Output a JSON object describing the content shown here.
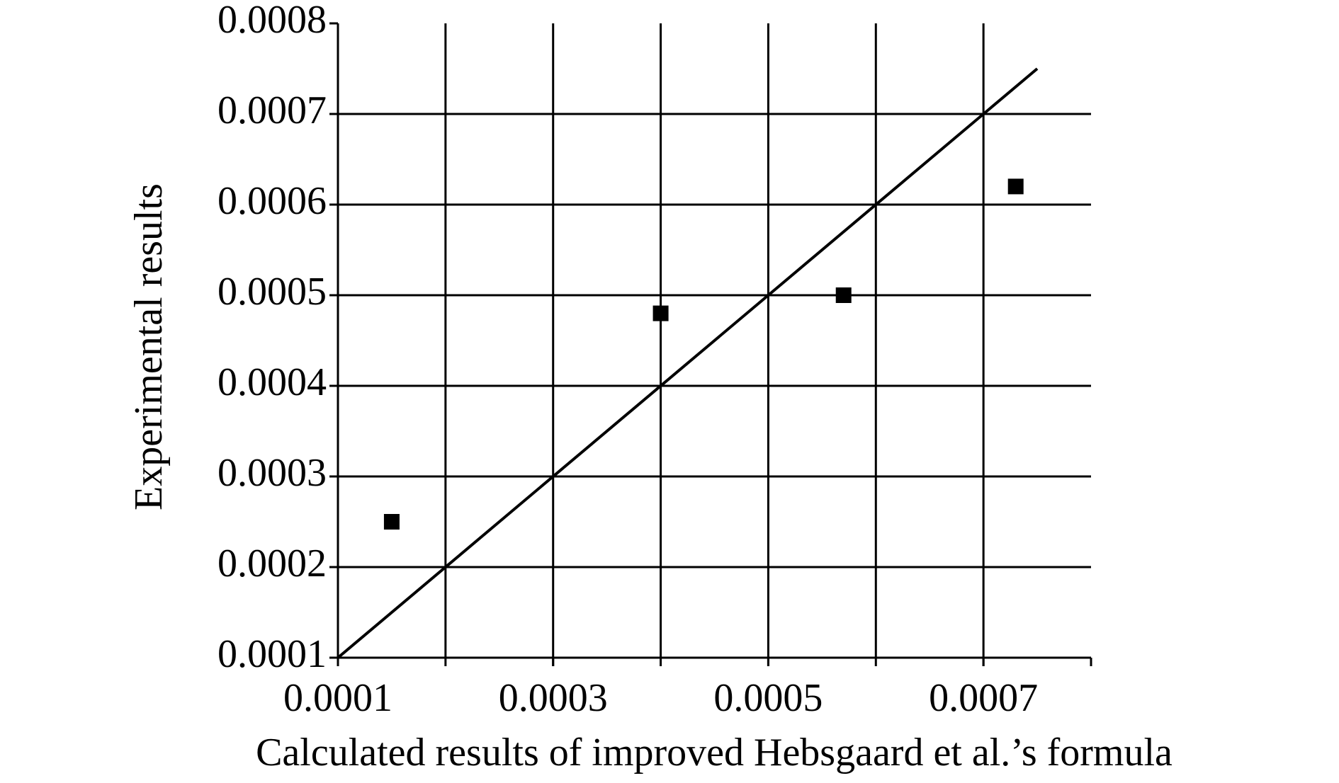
{
  "chart_data": {
    "type": "scatter",
    "xlabel": "Calculated results of improved Hebsgaard et al.’s formula",
    "ylabel": "Experimental results",
    "x": [
      0.00015,
      0.0004,
      0.00057,
      0.00073
    ],
    "y": [
      0.00025,
      0.00048,
      0.0005,
      0.00062
    ],
    "color": "#000000",
    "line": {
      "x": [
        0.0001,
        0.00075
      ],
      "y": [
        0.0001,
        0.00075
      ],
      "color": "#000000"
    },
    "xlim": [
      0.0001,
      0.0008
    ],
    "ylim": [
      0.0001,
      0.0008
    ],
    "xticks": [
      0.0001,
      0.0003,
      0.0005,
      0.0007
    ],
    "xgrid": [
      0.0002,
      0.0003,
      0.0004,
      0.0005,
      0.0006,
      0.0007
    ],
    "yticks": [
      0.0001,
      0.0002,
      0.0003,
      0.0004,
      0.0005,
      0.0006,
      0.0007,
      0.0008
    ],
    "grid": true
  }
}
